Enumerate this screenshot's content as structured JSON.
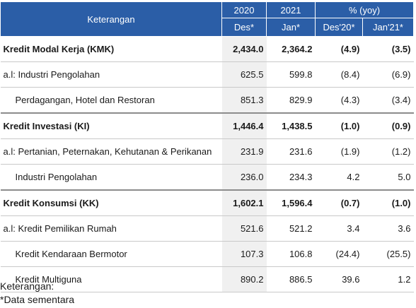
{
  "table": {
    "header": {
      "label": "Keterangan",
      "year_2020": "2020",
      "year_2021": "2021",
      "yoy": "% (yoy)",
      "sub_2020": "Des*",
      "sub_2021": "Jan*",
      "sub_yoy_dec": "Des'20*",
      "sub_yoy_jan": "Jan'21*"
    },
    "rows": [
      {
        "label": "Kredit Modal Kerja (KMK)",
        "v2020": "2,434.0",
        "v2021": "2,364.2",
        "yoy_dec": "(4.9)",
        "yoy_jan": "(3.5)"
      },
      {
        "label": "a.l: Industri Pengolahan",
        "v2020": "625.5",
        "v2021": "599.8",
        "yoy_dec": "(8.4)",
        "yoy_jan": "(6.9)"
      },
      {
        "label": "Perdagangan, Hotel dan Restoran",
        "v2020": "851.3",
        "v2021": "829.9",
        "yoy_dec": "(4.3)",
        "yoy_jan": "(3.4)"
      },
      {
        "label": "Kredit Investasi (KI)",
        "v2020": "1,446.4",
        "v2021": "1,438.5",
        "yoy_dec": "(1.0)",
        "yoy_jan": "(0.9)"
      },
      {
        "label": "a.l: Pertanian, Peternakan, Kehutanan & Perikanan",
        "v2020": "231.9",
        "v2021": "231.6",
        "yoy_dec": "(1.9)",
        "yoy_jan": "(1.2)"
      },
      {
        "label": "Industri Pengolahan",
        "v2020": "236.0",
        "v2021": "234.3",
        "yoy_dec": "4.2",
        "yoy_jan": "5.0"
      },
      {
        "label": "Kredit Konsumsi (KK)",
        "v2020": "1,602.1",
        "v2021": "1,596.4",
        "yoy_dec": "(0.7)",
        "yoy_jan": "(1.0)"
      },
      {
        "label": "a.l: Kredit Pemilikan Rumah",
        "v2020": "521.6",
        "v2021": "521.2",
        "yoy_dec": "3.4",
        "yoy_jan": "3.6"
      },
      {
        "label": "Kredit Kendaraan Bermotor",
        "v2020": "107.3",
        "v2021": "106.8",
        "yoy_dec": "(24.4)",
        "yoy_jan": "(25.5)"
      },
      {
        "label": "Kredit Multiguna",
        "v2020": "890.2",
        "v2021": "886.5",
        "yoy_dec": "39.6",
        "yoy_jan": "1.2"
      }
    ]
  },
  "notes": {
    "title": "Keterangan:",
    "line1": "*Data sementara"
  }
}
